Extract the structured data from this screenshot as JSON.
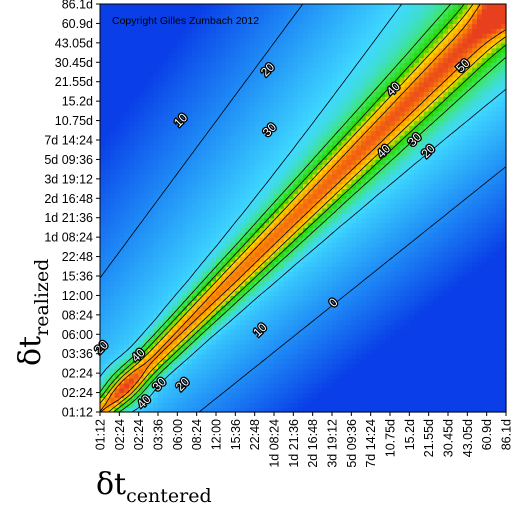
{
  "chart_data": {
    "type": "heatmap",
    "title": "",
    "copyright": "Copyright Gilles Zumbach 2012",
    "xlabel": {
      "symbol": "δt",
      "subscript": "centered"
    },
    "ylabel": {
      "symbol": "δt",
      "subscript": "realized"
    },
    "x_ticks": [
      "01:12",
      "02:24",
      "02:24",
      "03:36",
      "06:00",
      "08:24",
      "12:00",
      "15:36",
      "22:48",
      "1d 08:24",
      "1d 21:36",
      "2d 16:48",
      "3d 19:12",
      "5d 09:36",
      "7d 14:24",
      "10.75d",
      "15.2d",
      "21.55d",
      "30.45d",
      "43.05d",
      "60.9d",
      "86.1d"
    ],
    "y_ticks": [
      "01:12",
      "02:24",
      "02:24",
      "03:36",
      "06:00",
      "08:24",
      "12:00",
      "15:36",
      "22:48",
      "1d 08:24",
      "1d 21:36",
      "2d 16:48",
      "3d 19:12",
      "5d 09:36",
      "7d 14:24",
      "10.75d",
      "15.2d",
      "21.55d",
      "30.45d",
      "43.05d",
      "60.9d",
      "86.1d"
    ],
    "contour_levels": [
      0,
      10,
      20,
      30,
      40,
      50
    ],
    "contour_labels": [
      {
        "text": "10",
        "x": 4.2,
        "y": 15.0
      },
      {
        "text": "20",
        "x": 8.7,
        "y": 17.6
      },
      {
        "text": "30",
        "x": 8.8,
        "y": 14.5
      },
      {
        "text": "40",
        "x": 15.2,
        "y": 16.6
      },
      {
        "text": "40",
        "x": 14.7,
        "y": 13.4
      },
      {
        "text": "30",
        "x": 16.3,
        "y": 14.0
      },
      {
        "text": "20",
        "x": 17.0,
        "y": 13.4
      },
      {
        "text": "50",
        "x": 18.8,
        "y": 17.8
      },
      {
        "text": "0",
        "x": 12.1,
        "y": 5.6
      },
      {
        "text": "10",
        "x": 8.3,
        "y": 4.2
      },
      {
        "text": "20",
        "x": 0.1,
        "y": 3.3
      },
      {
        "text": "40",
        "x": 2.0,
        "y": 2.9
      },
      {
        "text": "40",
        "x": 2.3,
        "y": 0.5
      },
      {
        "text": "30",
        "x": 3.1,
        "y": 1.4
      },
      {
        "text": "20",
        "x": 4.3,
        "y": 1.4
      }
    ],
    "colormap": [
      "#0a3fe8",
      "#1f8cf6",
      "#3fd9ff",
      "#3ee85a",
      "#22d400",
      "#ffd700",
      "#ff9800",
      "#e8401e"
    ],
    "value_range": [
      -10,
      60
    ]
  }
}
